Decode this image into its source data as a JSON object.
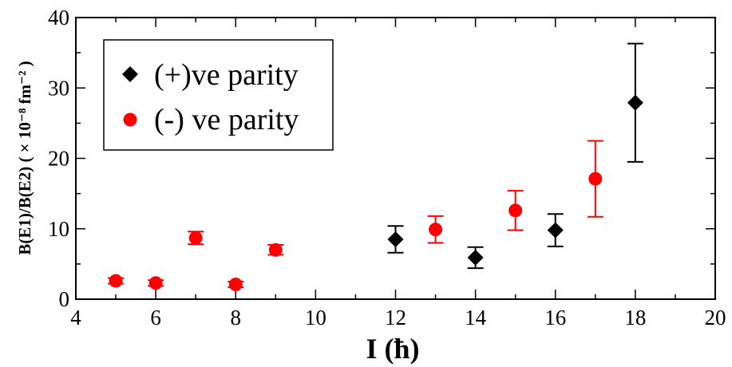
{
  "chart_data": {
    "type": "scatter",
    "title": "",
    "xlabel": "I (ħ)",
    "ylabel": "B(E1)/B(E2) ( × 10⁻⁸ fm⁻² )",
    "xlim": [
      4,
      20
    ],
    "ylim": [
      0,
      40
    ],
    "x_ticks": [
      4,
      6,
      8,
      10,
      12,
      14,
      16,
      18,
      20
    ],
    "y_ticks": [
      0,
      10,
      20,
      30,
      40
    ],
    "grid": false,
    "legend_position": "top-left",
    "series": [
      {
        "name": "(+)ve parity",
        "color": "#000000",
        "marker": "diamond",
        "points": [
          {
            "x": 12,
            "y": 8.5,
            "err_low": 6.6,
            "err_high": 10.4
          },
          {
            "x": 14,
            "y": 5.9,
            "err_low": 4.4,
            "err_high": 7.4
          },
          {
            "x": 16,
            "y": 9.8,
            "err_low": 7.5,
            "err_high": 12.1
          },
          {
            "x": 18,
            "y": 27.9,
            "err_low": 19.5,
            "err_high": 36.3
          }
        ]
      },
      {
        "name": "(-) ve parity",
        "color": "#ff0000",
        "marker": "circle",
        "points": [
          {
            "x": 5,
            "y": 2.6,
            "err_low": 2.2,
            "err_high": 3.0
          },
          {
            "x": 6,
            "y": 2.3,
            "err_low": 1.9,
            "err_high": 2.7
          },
          {
            "x": 7,
            "y": 8.7,
            "err_low": 7.8,
            "err_high": 9.6
          },
          {
            "x": 8,
            "y": 2.1,
            "err_low": 1.7,
            "err_high": 2.5
          },
          {
            "x": 9,
            "y": 7.0,
            "err_low": 6.3,
            "err_high": 7.7
          },
          {
            "x": 13,
            "y": 9.9,
            "err_low": 8.0,
            "err_high": 11.8
          },
          {
            "x": 15,
            "y": 12.6,
            "err_low": 9.8,
            "err_high": 15.4
          },
          {
            "x": 17,
            "y": 17.1,
            "err_low": 11.7,
            "err_high": 22.5
          }
        ]
      }
    ]
  }
}
